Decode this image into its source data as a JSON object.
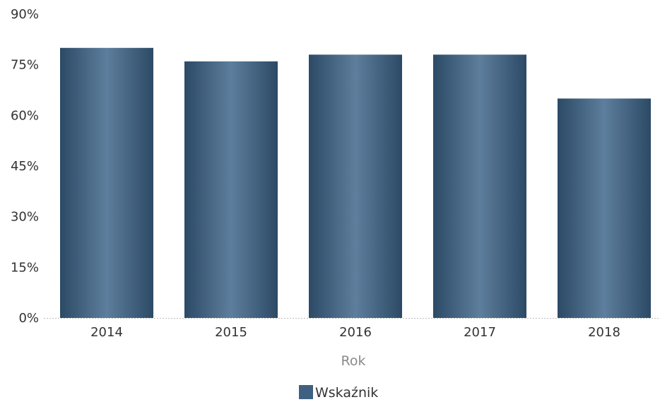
{
  "chart_data": {
    "type": "bar",
    "categories": [
      "2014",
      "2015",
      "2016",
      "2017",
      "2018"
    ],
    "series": [
      {
        "name": "Wskaźnik",
        "values": [
          80,
          76,
          78,
          78,
          65
        ]
      }
    ],
    "xlabel": "Rok",
    "ylabel": "",
    "ylim": [
      0,
      90
    ],
    "yticks": [
      0,
      15,
      30,
      45,
      60,
      75,
      90
    ],
    "ytick_labels": [
      "0%",
      "15%",
      "30%",
      "45%",
      "60%",
      "75%",
      "90%"
    ],
    "legend": {
      "position": "bottom",
      "entries": [
        "Wskaźnik"
      ]
    },
    "grid": false,
    "colors": {
      "bar_edge": "#2c4a66",
      "bar_center": "#5d7e9c",
      "legend_swatch": "#3f6181"
    }
  }
}
